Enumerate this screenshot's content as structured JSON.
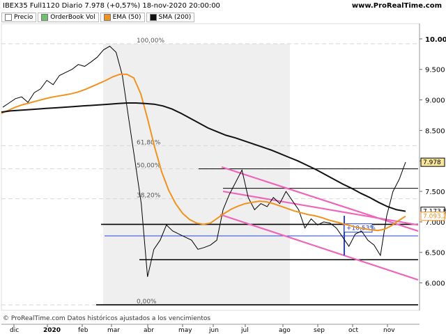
{
  "header": {
    "title": "IBEX35 Full1120 Diario 7.978 (+0,57%) 18-nov-2020 20:00:00",
    "brand": "www.ProRealTime.com"
  },
  "legend": [
    {
      "label": "Precio",
      "color": "#ffffff"
    },
    {
      "label": "OrderBook Vol",
      "color": "#6fbf6f"
    },
    {
      "label": "EMA (50)",
      "color": "#f0921e"
    },
    {
      "label": "SMA (200)",
      "color": "#111111"
    }
  ],
  "footer": "© ProRealTime.com  Datos históricos ajustados a los vencimientos",
  "chart_data": {
    "type": "line",
    "y_ticks": [
      "10.000",
      "9.500",
      "9.000",
      "8.500",
      "8.000",
      "7.500",
      "7.000",
      "6.500",
      "6.000"
    ],
    "ylim": [
      5.55,
      10.25
    ],
    "x_ticks": [
      "dic",
      "2020",
      "feb",
      "mar",
      "abr",
      "may",
      "jun",
      "jul",
      "ago",
      "sep",
      "oct",
      "nov"
    ],
    "fib_levels": [
      {
        "label": "100,00%",
        "value": 9.92
      },
      {
        "label": "61,80%",
        "value": 8.25
      },
      {
        "label": "50,00%",
        "value": 7.87
      },
      {
        "label": "38,20%",
        "value": 7.38
      },
      {
        "label": "0,00%",
        "value": 5.64
      }
    ],
    "horizontal_lines": [
      7.87,
      7.55,
      6.96,
      6.77,
      6.38,
      5.64
    ],
    "channel_annotation": "+10,53%",
    "price_labels": [
      {
        "text": "7.978",
        "value": 7.978,
        "color": "#000000",
        "bg": "#f6e59a"
      },
      {
        "text": "7.173,8",
        "value": 7.174,
        "color": "#000000",
        "bg": "#ffffff"
      },
      {
        "text": "7.093,2",
        "value": 7.093,
        "color": "#f0921e",
        "bg": "#ffffff"
      }
    ],
    "series": [
      {
        "name": "Precio",
        "color": "#000000",
        "values": [
          8.88,
          8.95,
          9.02,
          9.05,
          8.96,
          9.12,
          9.18,
          9.32,
          9.25,
          9.4,
          9.45,
          9.5,
          9.58,
          9.55,
          9.62,
          9.7,
          9.82,
          9.88,
          9.78,
          9.4,
          8.7,
          8.0,
          7.3,
          6.1,
          6.55,
          6.7,
          6.95,
          6.85,
          6.8,
          6.75,
          6.7,
          6.55,
          6.58,
          6.62,
          6.7,
          7.2,
          7.45,
          7.65,
          7.85,
          7.4,
          7.2,
          7.3,
          7.25,
          7.4,
          7.3,
          7.5,
          7.35,
          7.2,
          6.9,
          7.05,
          6.95,
          7.0,
          6.98,
          6.9,
          6.75,
          6.6,
          6.8,
          6.85,
          6.7,
          6.62,
          6.45,
          7.1,
          7.5,
          7.7,
          7.98
        ]
      },
      {
        "name": "EMA (50)",
        "color": "#f0921e",
        "values": [
          8.78,
          8.83,
          8.88,
          8.92,
          8.95,
          8.98,
          9.01,
          9.04,
          9.06,
          9.08,
          9.1,
          9.13,
          9.17,
          9.22,
          9.27,
          9.32,
          9.38,
          9.42,
          9.42,
          9.36,
          9.1,
          8.68,
          8.22,
          7.82,
          7.52,
          7.3,
          7.14,
          7.04,
          6.98,
          6.96,
          6.98,
          7.06,
          7.14,
          7.21,
          7.26,
          7.3,
          7.32,
          7.34,
          7.33,
          7.3,
          7.26,
          7.22,
          7.18,
          7.15,
          7.12,
          7.1,
          7.07,
          7.03,
          7.0,
          6.97,
          6.94,
          6.91,
          6.89,
          6.87,
          6.86,
          6.88,
          6.94,
          7.02,
          7.093
        ]
      },
      {
        "name": "SMA (200)",
        "color": "#111111",
        "values": [
          8.8,
          8.82,
          8.83,
          8.84,
          8.85,
          8.86,
          8.87,
          8.88,
          8.89,
          8.9,
          8.91,
          8.92,
          8.93,
          8.94,
          8.95,
          8.95,
          8.94,
          8.93,
          8.9,
          8.85,
          8.78,
          8.7,
          8.62,
          8.54,
          8.48,
          8.42,
          8.38,
          8.33,
          8.28,
          8.23,
          8.18,
          8.12,
          8.06,
          8.0,
          7.93,
          7.86,
          7.78,
          7.7,
          7.62,
          7.55,
          7.47,
          7.4,
          7.32,
          7.25,
          7.2,
          7.174
        ]
      }
    ]
  }
}
